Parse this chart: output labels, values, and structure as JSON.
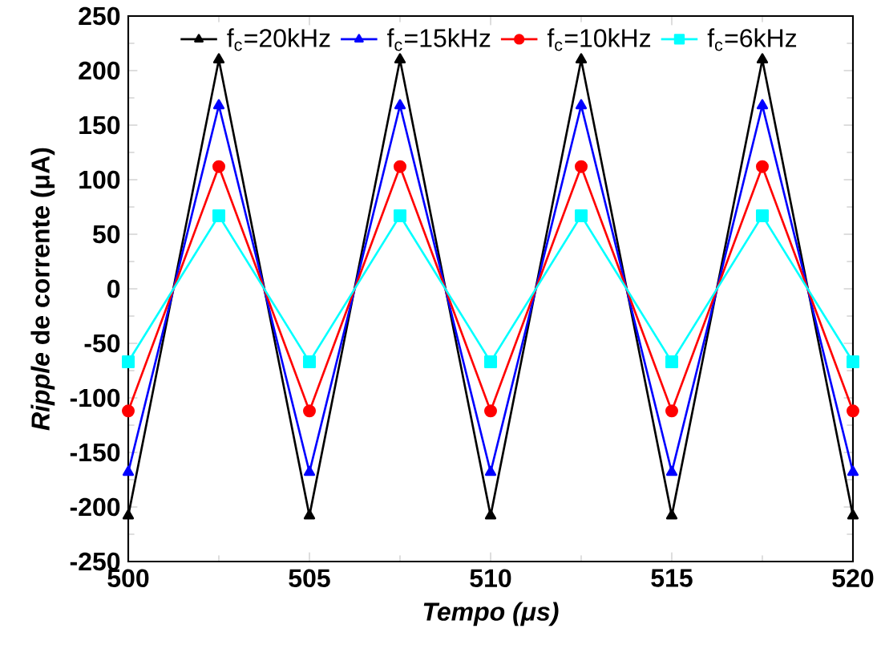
{
  "chart_data": {
    "type": "line",
    "xlabel": "Tempo (μs)",
    "ylabel": "*Ripple* de corrente (μA)",
    "xlim": [
      500,
      520
    ],
    "xticks": [
      500,
      505,
      510,
      515,
      520
    ],
    "ylim": [
      -250,
      250
    ],
    "yticks": [
      -250,
      -200,
      -150,
      -100,
      -50,
      0,
      50,
      100,
      150,
      200,
      250
    ],
    "legend": "top",
    "grid": false,
    "series": [
      {
        "name": "f$_{c}$=20kHz",
        "color": "#000000",
        "marker": "triangle",
        "x": [
          500,
          502.5,
          505,
          507.5,
          510,
          512.5,
          515,
          517.5,
          520
        ],
        "values": [
          -208,
          210,
          -208,
          210,
          -208,
          210,
          -208,
          210,
          -208
        ]
      },
      {
        "name": "f$_{c}$=15kHz",
        "color": "#0000ff",
        "marker": "triangle",
        "x": [
          500,
          502.5,
          505,
          507.5,
          510,
          512.5,
          515,
          517.5,
          520
        ],
        "values": [
          -168,
          168,
          -168,
          168,
          -168,
          168,
          -168,
          168,
          -168
        ]
      },
      {
        "name": "f$_{c}$=10kHz",
        "color": "#ff0000",
        "marker": "circle",
        "x": [
          500,
          502.5,
          505,
          507.5,
          510,
          512.5,
          515,
          517.5,
          520
        ],
        "values": [
          -112,
          112,
          -112,
          112,
          -112,
          112,
          -112,
          112,
          -112
        ]
      },
      {
        "name": "f$_{c}$=6kHz",
        "color": "#00ffff",
        "marker": "square",
        "x": [
          500,
          502.5,
          505,
          507.5,
          510,
          512.5,
          515,
          517.5,
          520
        ],
        "values": [
          -67,
          67,
          -67,
          67,
          -67,
          67,
          -67,
          67,
          -67
        ]
      }
    ]
  }
}
